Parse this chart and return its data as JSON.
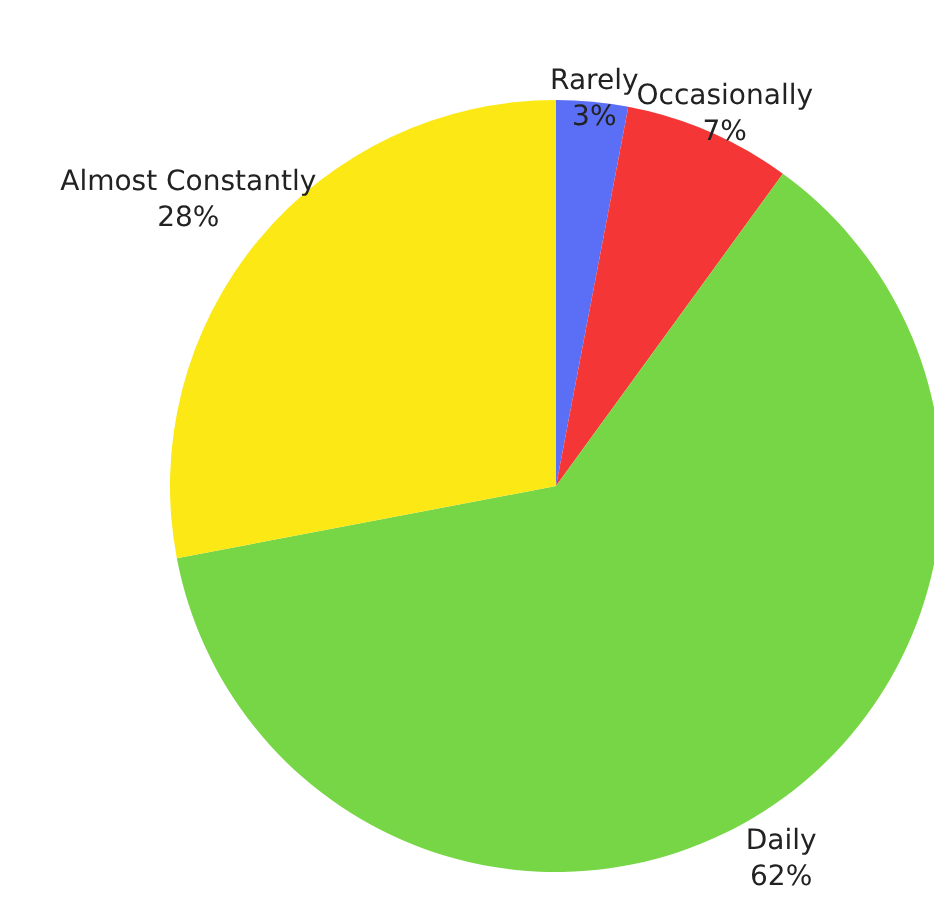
{
  "chart_data": {
    "type": "pie",
    "categories": [
      "Rarely",
      "Occasionally",
      "Daily",
      "Almost Constantly"
    ],
    "values": [
      3,
      7,
      62,
      28
    ],
    "value_labels": [
      "3%",
      "7%",
      "62%",
      "28%"
    ],
    "colors": [
      "#5a6ff5",
      "#f53636",
      "#77d645",
      "#fce814"
    ]
  }
}
